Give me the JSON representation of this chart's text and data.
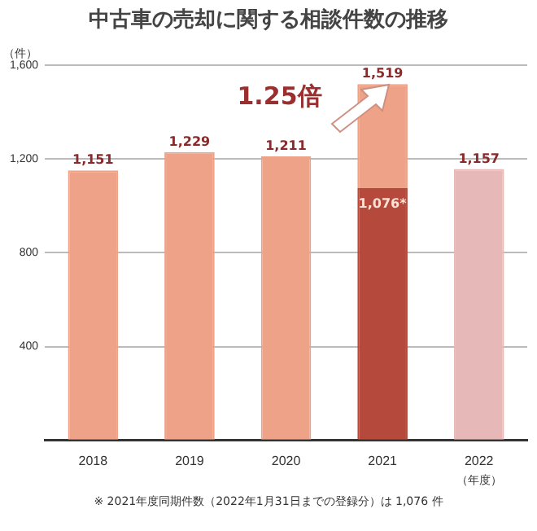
{
  "chart_data": {
    "type": "bar",
    "title": "中古車の売却に関する相談件数の推移",
    "ylabel": "（件）",
    "xlabel": "（年度）",
    "categories": [
      "2018",
      "2019",
      "2020",
      "2021",
      "2022"
    ],
    "stacked": true,
    "series": [
      {
        "colors": [
          "#b54a3c",
          "#b54a3c",
          "#b54a3c",
          "#b54a3c",
          "#e6b8b8"
        ],
        "values": [
          null,
          null,
          null,
          1076,
          1157
        ],
        "value_labels": [
          null,
          null,
          null,
          "1,076*",
          "1,157"
        ]
      },
      {
        "color": "#eea388",
        "values": [
          1151,
          1229,
          1211,
          443,
          null
        ],
        "value_labels": [
          "1,151",
          "1,229",
          "1,211",
          null,
          null
        ]
      }
    ],
    "totals": [
      null,
      null,
      null,
      "1,519",
      null
    ],
    "ylim": [
      0,
      1600
    ],
    "yticks": [
      {
        "value": 0,
        "label": null
      },
      400,
      800,
      {
        "value": 1200,
        "label": "1,200"
      },
      {
        "value": 1600,
        "label": "1,600"
      }
    ],
    "grid": "y",
    "annotations": [
      "1.25倍",
      "※ 2021年度同期件数（2022年1月31日までの登録分）は 1,076 件"
    ]
  }
}
